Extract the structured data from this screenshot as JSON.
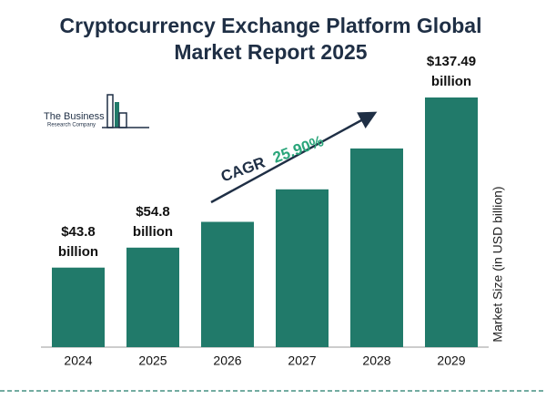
{
  "chart_data": {
    "type": "bar",
    "title": "Cryptocurrency Exchange Platform Global Market Report 2025",
    "categories": [
      "2024",
      "2025",
      "2026",
      "2027",
      "2028",
      "2029"
    ],
    "values": [
      43.8,
      54.8,
      69.0,
      86.9,
      109.4,
      137.49
    ],
    "value_labels": [
      "$43.8 billion",
      "$54.8 billion",
      null,
      null,
      null,
      "$137.49 billion"
    ],
    "color": "#217a6a",
    "y_axis_label": "Market Size (in USD billion)",
    "cagr_label": "CAGR",
    "cagr_value": "25.90%"
  },
  "logo": {
    "line1": "The Business",
    "line2": "Research Company"
  }
}
